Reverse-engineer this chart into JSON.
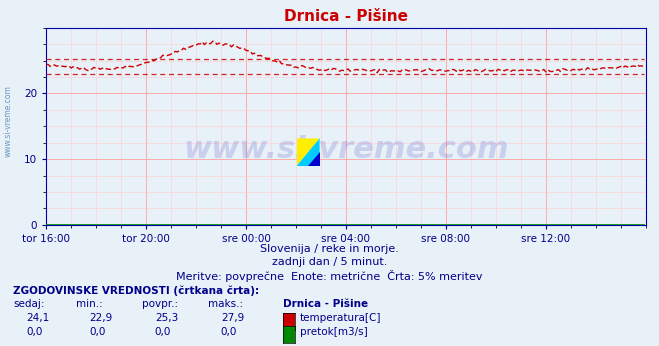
{
  "title": "Drnica - Pišine",
  "bg_color": "#e8f0f8",
  "plot_bg_color": "#e8f0f8",
  "grid_minor_color": "#ffcccc",
  "grid_major_color": "#ffaaaa",
  "axis_color": "#0000aa",
  "text_color": "#000088",
  "xlim": [
    0,
    288
  ],
  "ylim": [
    0,
    30
  ],
  "yticks": [
    0,
    10,
    20
  ],
  "xtick_labels": [
    "tor 16:00",
    "tor 20:00",
    "sre 00:00",
    "sre 04:00",
    "sre 08:00",
    "sre 12:00"
  ],
  "xtick_positions": [
    0,
    48,
    96,
    144,
    192,
    240
  ],
  "temp_color": "#cc0000",
  "flow_color": "#008800",
  "avg_temp": 25.3,
  "min_temp": 22.9,
  "max_temp": 27.9,
  "current_temp": 24.1,
  "subtitle1": "Slovenija / reke in morje.",
  "subtitle2": "zadnji dan / 5 minut.",
  "subtitle3": "Meritve: povprečne  Enote: metrične  Črta: 5% meritev",
  "table_header": "ZGODOVINSKE VREDNOSTI (črtkana črta):",
  "col_headers": [
    "sedaj:",
    "min.:",
    "povpr.:",
    "maks.:",
    "Drnica - Pišine"
  ],
  "row1": [
    "24,1",
    "22,9",
    "25,3",
    "27,9",
    "temperatura[C]"
  ],
  "row2": [
    "0,0",
    "0,0",
    "0,0",
    "0,0",
    "pretok[m3/s]"
  ],
  "watermark": "www.si-vreme.com",
  "side_text": "www.si-vreme.com",
  "figsize": [
    6.59,
    3.46
  ],
  "dpi": 100
}
